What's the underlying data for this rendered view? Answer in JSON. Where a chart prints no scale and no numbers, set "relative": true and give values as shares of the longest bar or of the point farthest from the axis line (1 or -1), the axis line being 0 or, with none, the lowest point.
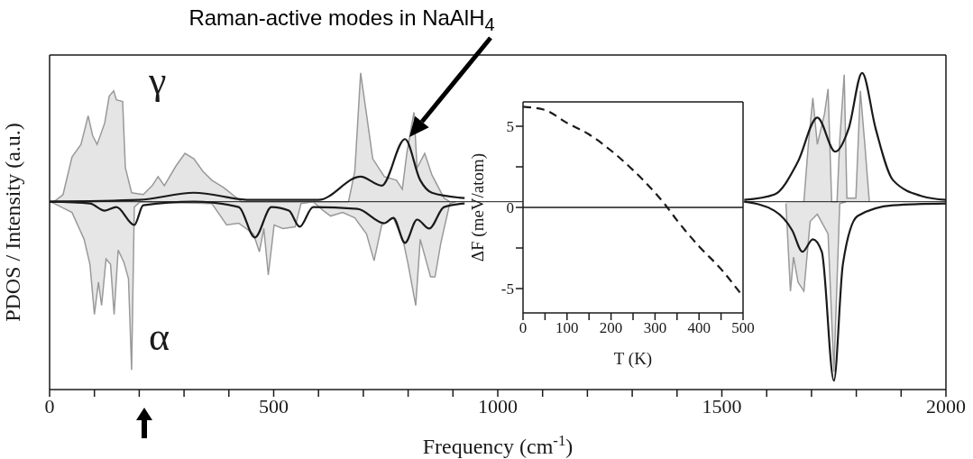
{
  "chart_data": [
    {
      "type": "line",
      "relative": true,
      "xlabel": "Frequency (cm$^{-1}$)",
      "ylabel": "PDOS / Intensity (a.u.)",
      "xlim": [
        0,
        2000
      ],
      "xticks": [
        0,
        {
          "value": 100,
          "label": null
        },
        {
          "value": 200,
          "label": null
        },
        {
          "value": 300,
          "label": null
        },
        {
          "value": 400,
          "label": null
        },
        500,
        {
          "value": 600,
          "label": null
        },
        {
          "value": 700,
          "label": null
        },
        {
          "value": 800,
          "label": null
        },
        {
          "value": 900,
          "label": null
        },
        1000,
        {
          "value": 1100,
          "label": null
        },
        {
          "value": 1200,
          "label": null
        },
        {
          "value": 1300,
          "label": null
        },
        {
          "value": 1400,
          "label": null
        },
        1500,
        {
          "value": 1600,
          "label": null
        },
        {
          "value": 1700,
          "label": null
        },
        {
          "value": 1800,
          "label": null
        },
        {
          "value": 1900,
          "label": null
        },
        2000
      ],
      "legend": false,
      "grid": false,
      "annotations": [
        "Raman-active modes in NaAlH$_{4}$",
        "γ",
        "α"
      ],
      "series": [
        {
          "type": "area",
          "color": "#999999",
          "x": [
            0,
            10,
            30,
            50,
            70,
            86,
            96,
            106,
            123,
            133,
            143,
            149,
            163,
            169,
            183,
            209,
            229,
            242,
            256,
            282,
            302,
            322,
            342,
            362,
            388,
            408,
            428,
            667,
            681,
            694,
            707,
            721,
            747,
            774,
            787,
            797,
            813,
            820,
            837,
            853,
            880,
            893,
            1200,
            1683,
            1693,
            1703,
            1713,
            1729,
            1737,
            1745,
            1757,
            1763,
            1773,
            1779,
            1799,
            1809,
            1819,
            1829
          ],
          "values": [
            0,
            0,
            0.04,
            0.25,
            0.32,
            0.48,
            0.37,
            0.32,
            0.44,
            0.59,
            0.62,
            0.57,
            0.56,
            0.19,
            0.05,
            0.04,
            0.09,
            0.14,
            0.09,
            0.2,
            0.27,
            0.24,
            0.17,
            0.12,
            0.08,
            0.04,
            0,
            0,
            0.17,
            0.72,
            0.49,
            0.24,
            0.14,
            0.12,
            0.07,
            0.27,
            0.5,
            0.19,
            0.27,
            0.15,
            0.02,
            0,
            null,
            0,
            0.32,
            0.58,
            0.32,
            0.49,
            0.63,
            0,
            0,
            0.34,
            0.71,
            0.02,
            0.02,
            0.62,
            0.32,
            0
          ]
        },
        {
          "type": "line",
          "color": "#1a1a1a",
          "x": [
            0,
            200,
            322,
            450,
            600,
            694,
            741,
            793,
            827,
            853,
            926,
            1200,
            1550,
            1617,
            1669,
            1713,
            1753,
            1783,
            1813,
            1843,
            1882,
            1948,
            2000
          ],
          "values": [
            0,
            0.01,
            0.05,
            0.01,
            0.01,
            0.14,
            0.09,
            0.35,
            0.12,
            0.05,
            0.02,
            null,
            0.01,
            0.04,
            0.22,
            0.47,
            0.28,
            0.41,
            0.72,
            0.41,
            0.12,
            0.03,
            0.01
          ]
        },
        {
          "type": "area",
          "color": "#9a9a9a",
          "x": [
            0,
            10,
            50,
            77,
            90,
            100,
            109,
            116,
            126,
            136,
            144,
            153,
            166,
            176,
            183,
            189,
            202,
            362,
            395,
            422,
            455,
            468,
            478,
            488,
            501,
            521,
            548,
            561,
            588,
            611,
            627,
            654,
            681,
            707,
            724,
            741,
            767,
            790,
            800,
            817,
            827,
            850,
            860,
            873,
            893,
            906,
            1200,
            1643,
            1653,
            1660,
            1670,
            1683,
            1697,
            1713,
            1737,
            1750,
            1763,
            1777
          ],
          "values": [
            0,
            -0.01,
            -0.06,
            -0.21,
            -0.35,
            -0.63,
            -0.45,
            -0.58,
            -0.32,
            -0.35,
            -0.63,
            -0.27,
            -0.34,
            -0.43,
            -0.94,
            -0.03,
            0,
            -0.01,
            -0.13,
            -0.12,
            -0.18,
            -0.28,
            -0.15,
            -0.41,
            -0.13,
            -0.15,
            -0.14,
            -0.01,
            0,
            -0.05,
            -0.08,
            -0.06,
            -0.09,
            -0.18,
            -0.33,
            -0.13,
            -0.09,
            -0.23,
            -0.35,
            -0.58,
            -0.21,
            -0.42,
            -0.42,
            -0.23,
            -0.01,
            0,
            null,
            -0.01,
            -0.5,
            -0.31,
            -0.45,
            -0.5,
            -0.11,
            -0.07,
            -0.18,
            -0.95,
            -0.01,
            0
          ]
        },
        {
          "type": "line",
          "color": "#1a1a1a",
          "x": [
            0,
            90,
            123,
            149,
            189,
            209,
            322,
            422,
            458,
            495,
            534,
            558,
            588,
            687,
            747,
            767,
            793,
            820,
            847,
            880,
            926,
            1200,
            1550,
            1617,
            1657,
            1680,
            1703,
            1723,
            1750,
            1770,
            1803,
            1882,
            2000
          ],
          "values": [
            0,
            -0.01,
            -0.05,
            -0.03,
            -0.13,
            -0.02,
            0,
            -0.03,
            -0.2,
            -0.03,
            -0.05,
            -0.14,
            -0.03,
            -0.04,
            -0.12,
            -0.09,
            -0.23,
            -0.1,
            -0.15,
            -0.03,
            -0.01,
            null,
            0,
            -0.05,
            -0.16,
            -0.28,
            -0.21,
            -0.28,
            -1,
            -0.35,
            -0.08,
            -0.02,
            -0.01
          ]
        }
      ]
    },
    {
      "type": "line",
      "xlabel": "T (K)",
      "ylabel": "ΔF (meV/atom)",
      "xlim": [
        0,
        500
      ],
      "ylim": [
        -6.5,
        6.5
      ],
      "xticks": [
        0,
        {
          "value": 50,
          "label": null
        },
        100,
        {
          "value": 150,
          "label": null
        },
        200,
        {
          "value": 250,
          "label": null
        },
        300,
        {
          "value": 350,
          "label": null
        },
        400,
        {
          "value": 450,
          "label": null
        },
        500
      ],
      "yticks": [
        -5,
        {
          "value": -2.5,
          "label": null
        },
        0,
        {
          "value": 2.5,
          "label": null
        },
        5
      ],
      "legend": false,
      "grid": false,
      "line_style": "dashed",
      "marker": "none",
      "ref_lines": [
        {
          "axis": "y",
          "value": 0,
          "color": "#1a1a1a"
        }
      ],
      "series": [
        {
          "color": "#1a1a1a",
          "x": [
            0,
            50,
            100,
            150,
            200,
            250,
            300,
            325,
            350,
            400,
            450,
            500
          ],
          "values": [
            6.2,
            6,
            5.2,
            4.5,
            3.5,
            2.3,
            0.9,
            0.1,
            -0.8,
            -2.4,
            -3.8,
            -5.5
          ]
        }
      ]
    }
  ]
}
